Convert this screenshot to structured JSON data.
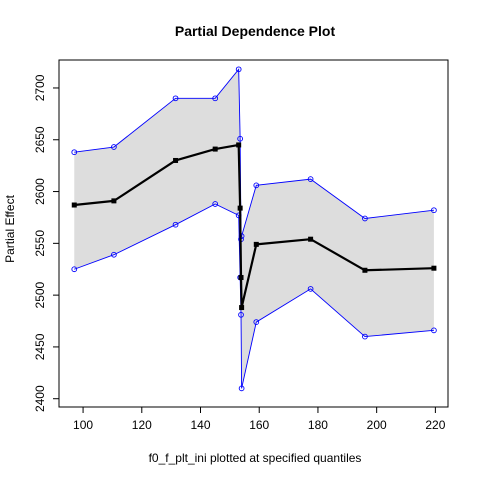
{
  "chart_data": {
    "type": "line",
    "title": "Partial Dependence Plot",
    "xlabel": "f0_f_plt_ini plotted at specified quantiles",
    "ylabel": "Partial Effect",
    "xlim": [
      91.8,
      224.3
    ],
    "ylim": [
      2392,
      2727
    ],
    "xticks": [
      100,
      120,
      140,
      160,
      180,
      200,
      220
    ],
    "yticks": [
      2400,
      2450,
      2500,
      2550,
      2600,
      2650,
      2700
    ],
    "grid": false,
    "legend": "none",
    "x": [
      97,
      110.5,
      131.5,
      145,
      153,
      153.5,
      153.8,
      154,
      159,
      177.5,
      196,
      219.5
    ],
    "series": [
      {
        "role": "estimate",
        "color": "#000000",
        "values": [
          2587,
          2591,
          2630,
          2641,
          2645,
          2584,
          2517,
          2488,
          2549,
          2554,
          2524,
          2526
        ]
      },
      {
        "role": "upper",
        "color": "#0000ff",
        "values": [
          2638,
          2643,
          2690,
          2690,
          2718,
          2651,
          2554,
          2557,
          2606,
          2612,
          2574,
          2582
        ]
      },
      {
        "role": "lower",
        "color": "#0000ff",
        "values": [
          2525,
          2539,
          2568,
          2588,
          2577,
          2517,
          2481,
          2410,
          2474,
          2506,
          2460,
          2466
        ]
      }
    ],
    "band_color": "#dddddd"
  }
}
